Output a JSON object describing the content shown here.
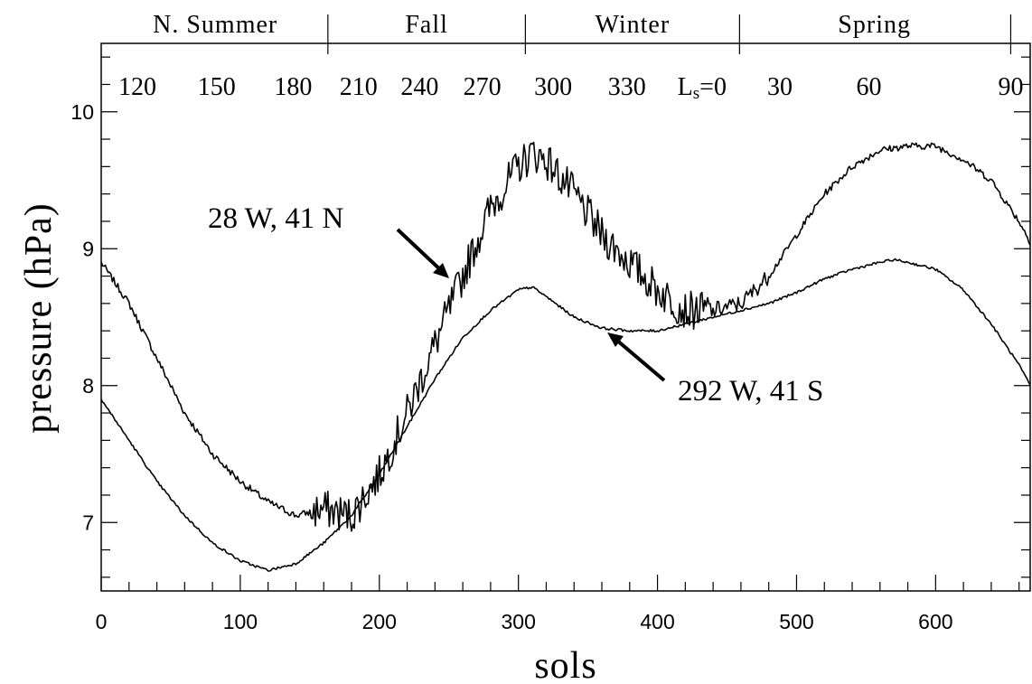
{
  "chart_data": {
    "type": "line",
    "xlabel": "sols",
    "ylabel": "pressure (hPa)",
    "xlim": [
      0,
      668
    ],
    "ylim": [
      6.5,
      10.5
    ],
    "x_ticks": [
      "0",
      "100",
      "200",
      "300",
      "400",
      "500",
      "600"
    ],
    "y_ticks": [
      "7",
      "8",
      "9",
      "10"
    ],
    "top_axis": {
      "ls_labels": [
        {
          "text": "120",
          "sol": 26
        },
        {
          "text": "150",
          "sol": 83
        },
        {
          "text": "180",
          "sol": 138
        },
        {
          "text": "210",
          "sol": 185
        },
        {
          "text": "240",
          "sol": 229
        },
        {
          "text": "270",
          "sol": 274
        },
        {
          "text": "300",
          "sol": 325
        },
        {
          "text": "330",
          "sol": 378
        },
        {
          "text": "0",
          "sol": 432
        },
        {
          "text": "30",
          "sol": 488
        },
        {
          "text": "60",
          "sol": 552
        },
        {
          "text": "90",
          "sol": 654
        }
      ],
      "ls_prefix": "L",
      "ls_subscript": "s",
      "ls_equals": "=",
      "season_boundaries": [
        163,
        305,
        459,
        654
      ],
      "seasons": [
        {
          "label": "N. Summer",
          "center": 82
        },
        {
          "label": "Fall",
          "center": 234
        },
        {
          "label": "Winter",
          "center": 382
        },
        {
          "label": "Spring",
          "center": 556
        }
      ]
    },
    "series": [
      {
        "name": "28 W, 41 N",
        "noisy": true,
        "x": [
          0,
          20,
          40,
          60,
          80,
          100,
          120,
          140,
          160,
          180,
          200,
          220,
          240,
          260,
          280,
          300,
          310,
          320,
          340,
          360,
          380,
          400,
          420,
          440,
          460,
          480,
          500,
          520,
          540,
          560,
          580,
          600,
          620,
          640,
          660,
          668
        ],
        "y": [
          8.9,
          8.6,
          8.2,
          7.8,
          7.5,
          7.3,
          7.15,
          7.05,
          7.1,
          7.05,
          7.35,
          7.8,
          8.3,
          8.8,
          9.3,
          9.6,
          9.7,
          9.65,
          9.4,
          9.1,
          8.9,
          8.7,
          8.55,
          8.55,
          8.6,
          8.8,
          9.1,
          9.4,
          9.6,
          9.72,
          9.75,
          9.75,
          9.65,
          9.5,
          9.2,
          9.05
        ]
      },
      {
        "name": "292 W, 41 S",
        "noisy": false,
        "x": [
          0,
          20,
          40,
          60,
          80,
          100,
          120,
          140,
          160,
          180,
          200,
          220,
          240,
          260,
          280,
          300,
          310,
          320,
          340,
          360,
          380,
          400,
          420,
          440,
          460,
          480,
          500,
          520,
          540,
          560,
          570,
          580,
          600,
          620,
          640,
          660,
          668
        ],
        "y": [
          7.9,
          7.6,
          7.3,
          7.05,
          6.85,
          6.72,
          6.65,
          6.7,
          6.85,
          7.05,
          7.35,
          7.7,
          8.05,
          8.35,
          8.55,
          8.7,
          8.72,
          8.65,
          8.5,
          8.42,
          8.4,
          8.4,
          8.45,
          8.5,
          8.55,
          8.6,
          8.68,
          8.78,
          8.85,
          8.9,
          8.92,
          8.9,
          8.85,
          8.7,
          8.45,
          8.15,
          8.0
        ]
      }
    ],
    "annotations": [
      {
        "text": "28 W, 41 N",
        "series": 0
      },
      {
        "text": "292 W, 41 S",
        "series": 1
      }
    ]
  }
}
